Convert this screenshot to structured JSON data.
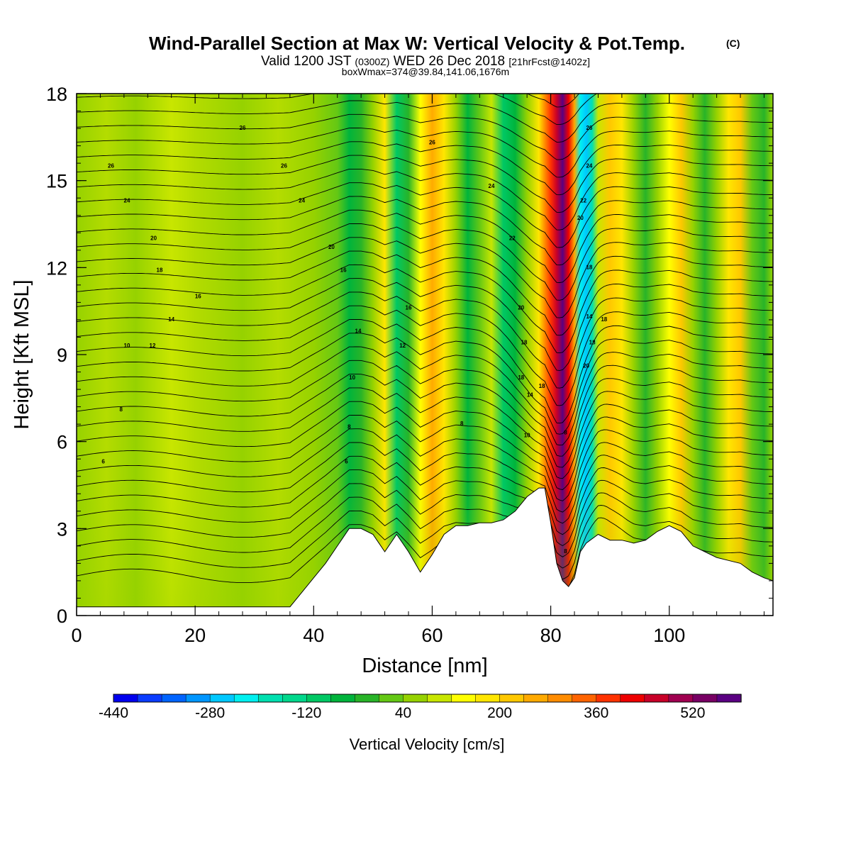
{
  "header": {
    "title": "Wind-Parallel Section at Max W: Vertical Velocity & Pot.Temp.",
    "copyright": "(C)",
    "valid_prefix": "Valid 1200 JST",
    "valid_utc": "(0300Z)",
    "valid_date": "WED 26 Dec 2018",
    "forecast_info": "[21hrFcst@1402z]",
    "box_info": "boxWmax=374@39.84,141.06,1676m"
  },
  "chart_data": {
    "type": "heatmap",
    "xlabel": "Distance [nm]",
    "ylabel": "Height [Kft MSL]",
    "xlim": [
      0,
      117.5
    ],
    "ylim": [
      0,
      18
    ],
    "x_ticks": [
      0,
      20,
      40,
      60,
      80,
      100
    ],
    "y_ticks": [
      0,
      3,
      6,
      9,
      12,
      15,
      18
    ],
    "colorbar": {
      "label": "Vertical Velocity [cm/s]",
      "min": -440,
      "max": 560,
      "step": 40,
      "tick_labels": [
        "-440",
        "-280",
        "-120",
        "40",
        "200",
        "360",
        "520"
      ],
      "colors": [
        "#0000ee",
        "#0a3cff",
        "#0064ff",
        "#0096ff",
        "#00c8ff",
        "#00f0f0",
        "#00e0b0",
        "#00d88c",
        "#00c864",
        "#00b43c",
        "#28b428",
        "#64c814",
        "#96d200",
        "#c8e600",
        "#ffff00",
        "#ffe600",
        "#ffc800",
        "#ffaa00",
        "#ff8c00",
        "#ff6400",
        "#ff3200",
        "#ee0000",
        "#c80028",
        "#a00050",
        "#780064",
        "#5a0082"
      ]
    },
    "theta_contour_labels": [
      "6",
      "8",
      "10",
      "12",
      "14",
      "16",
      "18",
      "20",
      "22",
      "24",
      "26"
    ],
    "max_updraft": {
      "x_nm": 82,
      "velocity_cm_s": 520
    },
    "max_downdraft": {
      "x_nm": 86,
      "velocity_cm_s": -280
    },
    "terrain_kft": {
      "x": [
        0,
        36,
        38,
        40,
        42,
        44,
        46,
        48,
        50,
        52,
        54,
        56,
        58,
        60,
        62,
        64,
        66,
        68,
        70,
        72,
        74,
        76,
        78,
        79,
        80,
        81,
        82,
        83,
        84,
        85,
        86,
        88,
        90,
        92,
        94,
        96,
        98,
        100,
        102,
        104,
        106,
        108,
        110,
        112,
        114,
        116,
        117.5
      ],
      "y": [
        0.3,
        0.3,
        0.8,
        1.3,
        1.8,
        2.4,
        3.0,
        3.0,
        2.8,
        2.2,
        2.8,
        2.2,
        1.5,
        2.1,
        2.8,
        3.1,
        3.1,
        3.2,
        3.2,
        3.3,
        3.6,
        4.1,
        4.4,
        4.4,
        3.2,
        1.8,
        1.2,
        1.0,
        1.3,
        2.2,
        2.5,
        2.8,
        2.6,
        2.6,
        2.5,
        2.6,
        2.9,
        3.1,
        2.9,
        2.4,
        2.2,
        2.0,
        1.9,
        1.8,
        1.5,
        1.3,
        1.2
      ]
    }
  }
}
